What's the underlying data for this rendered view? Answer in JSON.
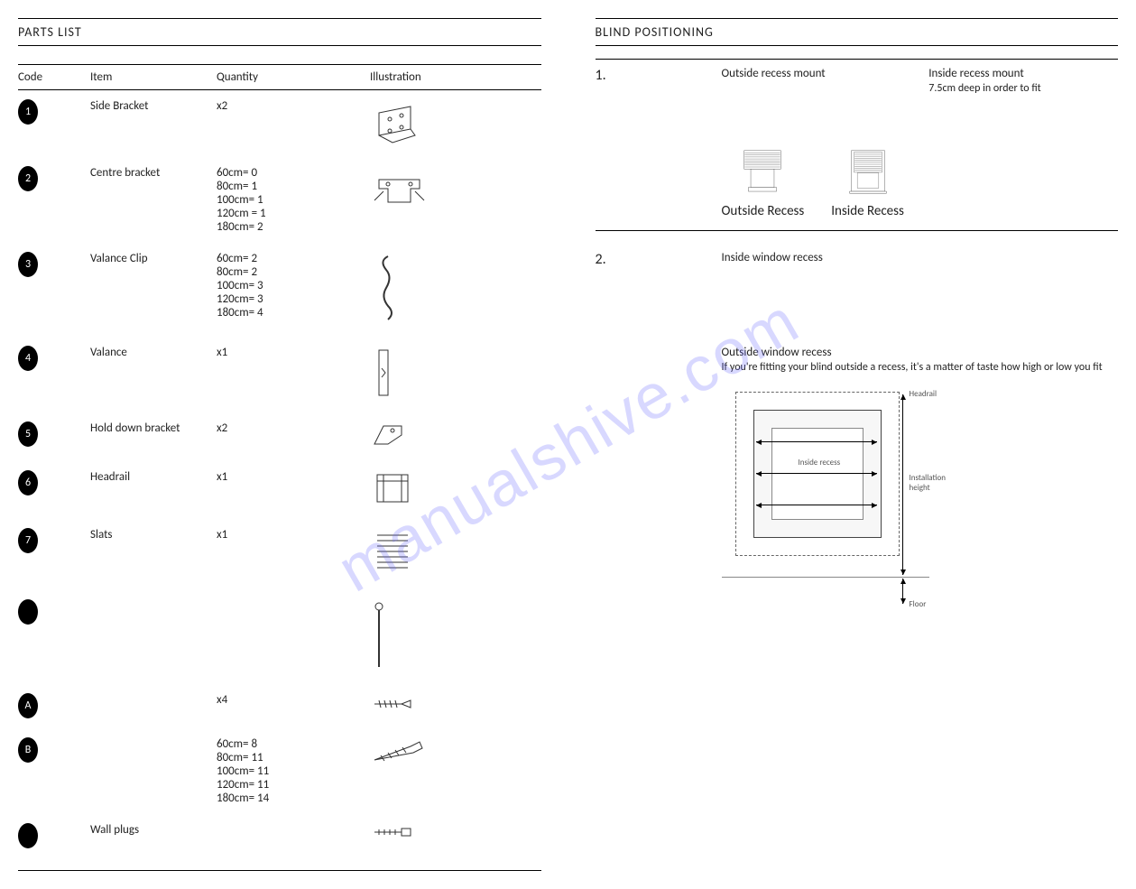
{
  "watermark": "manualshive.com",
  "partsList": {
    "title": "PARTS LIST",
    "headers": {
      "code": "Code",
      "item": "Item",
      "quantity": "Quantity",
      "illustration": "Illustration"
    },
    "rows": [
      {
        "code": "1",
        "item": "Side Bracket",
        "quantity": "x2",
        "icon": "side-bracket"
      },
      {
        "code": "2",
        "item": "Centre bracket",
        "quantity": "60cm= 0\n80cm= 1\n100cm= 1\n120cm = 1\n180cm= 2",
        "icon": "centre-bracket"
      },
      {
        "code": "3",
        "item": "Valance Clip",
        "quantity": "60cm= 2\n80cm= 2\n100cm= 3\n120cm= 3\n180cm= 4",
        "icon": "valance-clip"
      },
      {
        "code": "4",
        "item": "Valance",
        "quantity": "x1",
        "icon": "valance"
      },
      {
        "code": "5",
        "item": "Hold down bracket",
        "quantity": "x2",
        "icon": "hold-down"
      },
      {
        "code": "6",
        "item": "Headrail",
        "quantity": "x1",
        "icon": "headrail"
      },
      {
        "code": "7",
        "item": "Slats",
        "quantity": "x1",
        "icon": "slats"
      },
      {
        "code": "",
        "item": "",
        "quantity": "",
        "icon": "wand"
      },
      {
        "code": "A",
        "item": "",
        "quantity": "x4",
        "icon": "screw-a"
      },
      {
        "code": "B",
        "item": "",
        "quantity": "60cm= 8\n80cm= 11\n100cm= 11\n120cm= 11\n180cm= 14",
        "icon": "screw-b"
      },
      {
        "code": "",
        "item": "Wall plugs",
        "quantity": "",
        "icon": "wall-plug"
      }
    ]
  },
  "positioning": {
    "title": "BLIND POSITIONING",
    "step1": {
      "num": "1.",
      "outside": {
        "heading": "Outside recess mount",
        "text": ""
      },
      "inside": {
        "heading": "Inside recess mount",
        "text": "7.5cm deep in order to fit"
      },
      "capOutside": "Outside Recess",
      "capInside": "Inside Recess"
    },
    "step2": {
      "num": "2.",
      "insideHeading": "Inside window recess",
      "outsideHeading": "Outside window recess",
      "outsideText": "If you're fitting your blind outside a recess, it's a matter of taste how high or low you fit",
      "diagram": {
        "insideLabel": "Inside recess",
        "headrail": "Headrail",
        "installHeight": "Installation height",
        "floor": "Floor"
      }
    }
  }
}
